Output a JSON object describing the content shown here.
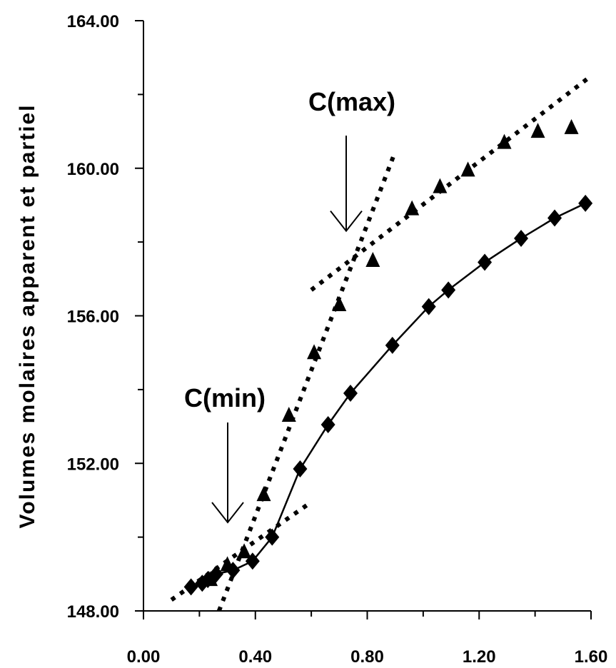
{
  "chart_data": {
    "type": "scatter",
    "title": "",
    "xlabel": "",
    "ylabel": "Volumes molaires apparent et partiel",
    "xlim": [
      0.0,
      1.6
    ],
    "ylim": [
      148.0,
      164.0
    ],
    "x_ticks": [
      "0.00",
      "0.40",
      "0.80",
      "1.20",
      "1.60"
    ],
    "y_ticks": [
      "148.00",
      "152.00",
      "156.00",
      "160.00",
      "164.00"
    ],
    "grid": false,
    "legend": "none",
    "series": [
      {
        "marker": "diamond",
        "line": "solid",
        "color": "#000000",
        "x": [
          0.17,
          0.21,
          0.23,
          0.26,
          0.32,
          0.39,
          0.46,
          0.56,
          0.66,
          0.74,
          0.89,
          1.02,
          1.09,
          1.22,
          1.35,
          1.47,
          1.58
        ],
        "y": [
          148.65,
          148.75,
          148.85,
          149.0,
          149.1,
          149.35,
          150.0,
          151.85,
          153.05,
          153.9,
          155.2,
          156.25,
          156.7,
          157.45,
          158.1,
          158.65,
          159.05
        ]
      },
      {
        "marker": "triangle",
        "line": "none",
        "color": "#000000",
        "x": [
          0.24,
          0.3,
          0.36,
          0.43,
          0.52,
          0.61,
          0.7,
          0.82,
          0.96,
          1.06,
          1.16,
          1.29,
          1.41,
          1.53
        ],
        "y": [
          148.85,
          149.25,
          149.6,
          151.15,
          153.3,
          155.0,
          156.3,
          157.5,
          158.9,
          159.5,
          159.95,
          160.7,
          161.0,
          161.1
        ]
      }
    ],
    "fit_lines": [
      {
        "style": "dotted",
        "x": [
          0.1,
          0.6
        ],
        "y": [
          148.3,
          150.95
        ]
      },
      {
        "style": "dotted",
        "x": [
          0.27,
          0.9
        ],
        "y": [
          148.0,
          160.45
        ]
      },
      {
        "style": "dotted",
        "x": [
          0.6,
          1.6
        ],
        "y": [
          156.7,
          162.5
        ]
      }
    ],
    "annotations": [
      {
        "text": "C(min)",
        "arrow_to": [
          0.3,
          150.4
        ]
      },
      {
        "text": "C(max)",
        "arrow_to": [
          0.72,
          158.3
        ]
      }
    ]
  }
}
